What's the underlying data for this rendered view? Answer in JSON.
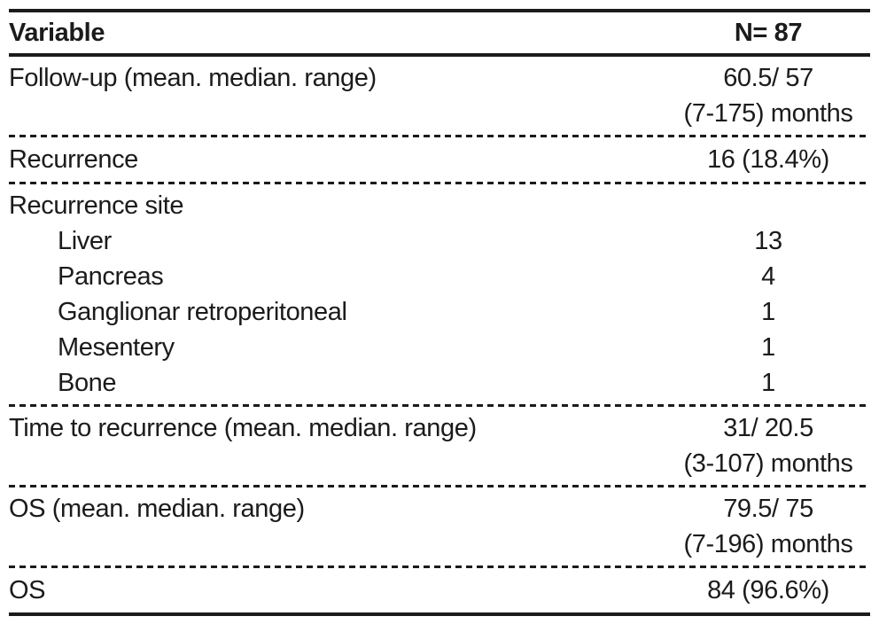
{
  "table": {
    "header": {
      "variable": "Variable",
      "n": "N= 87"
    },
    "rows": [
      {
        "label": "Follow-up (mean. median. range)",
        "value_lines": [
          "60.5/ 57",
          "(7-175) months"
        ]
      },
      {
        "label": "Recurrence",
        "value_lines": [
          "16 (18.4%)"
        ]
      },
      {
        "label": "Recurrence site",
        "value_lines": [],
        "sub_rows": [
          {
            "label": "Liver",
            "value": "13"
          },
          {
            "label": "Pancreas",
            "value": "4"
          },
          {
            "label": "Ganglionar retroperitoneal",
            "value": "1"
          },
          {
            "label": "Mesentery",
            "value": "1"
          },
          {
            "label": "Bone",
            "value": "1"
          }
        ]
      },
      {
        "label": "Time to recurrence (mean. median. range)",
        "value_lines": [
          "31/ 20.5",
          "(3-107) months"
        ]
      },
      {
        "label": "OS (mean. median. range)",
        "value_lines": [
          "79.5/ 75",
          "(7-196) months"
        ]
      },
      {
        "label": "OS",
        "value_lines": [
          "84 (96.6%)"
        ]
      }
    ],
    "colors": {
      "text": "#1b1b1b",
      "border": "#1b1b1b",
      "background": "#ffffff"
    }
  }
}
